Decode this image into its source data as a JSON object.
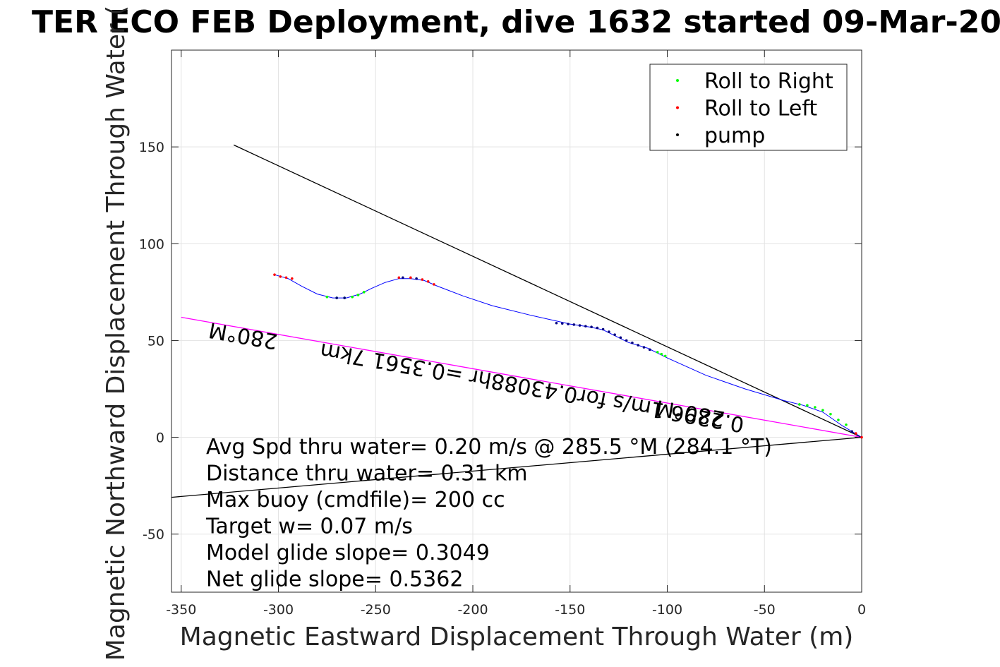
{
  "chart_data": {
    "type": "scatter",
    "title": "TER ECO FEB Deployment, dive 1632 started 09-Mar-20",
    "xlabel": "Magnetic Eastward Displacement Through Water (m)",
    "ylabel": "Magnetic Northward Displacement Through Water (",
    "xlim": [
      -355,
      0
    ],
    "ylim": [
      -80,
      200
    ],
    "xticks": [
      -350,
      -300,
      -250,
      -200,
      -150,
      -100,
      -50,
      0
    ],
    "yticks": [
      -50,
      0,
      50,
      100,
      150
    ],
    "grid": true,
    "legend_position": "top-right",
    "legend": [
      {
        "label": "Roll to Right",
        "color": "#00ff00"
      },
      {
        "label": "Roll to Left",
        "color": "#ff0000"
      },
      {
        "label": "pump",
        "color": "#000000"
      }
    ],
    "track": {
      "color": "#0000ff",
      "points": [
        [
          -302,
          84
        ],
        [
          -295,
          82
        ],
        [
          -288,
          78
        ],
        [
          -280,
          74
        ],
        [
          -272,
          72
        ],
        [
          -265,
          72
        ],
        [
          -258,
          74
        ],
        [
          -252,
          77
        ],
        [
          -245,
          80
        ],
        [
          -238,
          82
        ],
        [
          -232,
          82
        ],
        [
          -225,
          81
        ],
        [
          -218,
          78
        ],
        [
          -205,
          73
        ],
        [
          -190,
          68
        ],
        [
          -170,
          63
        ],
        [
          -150,
          58.5
        ],
        [
          -140,
          57
        ],
        [
          -133,
          55.5
        ],
        [
          -128,
          53
        ],
        [
          -120,
          49
        ],
        [
          -110,
          46
        ],
        [
          -100,
          41
        ],
        [
          -80,
          32
        ],
        [
          -60,
          25
        ],
        [
          -40,
          19
        ],
        [
          -30,
          16.5
        ],
        [
          -20,
          13
        ],
        [
          -10,
          6
        ],
        [
          -5,
          3
        ],
        [
          0,
          0
        ]
      ]
    },
    "roll_right": [
      [
        -275,
        72.5
      ],
      [
        -270,
        72
      ],
      [
        -266,
        72
      ],
      [
        -262,
        72.5
      ],
      [
        -259,
        73.5
      ],
      [
        -256,
        75
      ],
      [
        -105,
        44
      ],
      [
        -103,
        43
      ],
      [
        -101,
        42
      ],
      [
        -32,
        17
      ],
      [
        -28,
        16.5
      ],
      [
        -24,
        15.5
      ],
      [
        -20,
        14
      ],
      [
        -16,
        12
      ],
      [
        -12,
        9
      ],
      [
        -8,
        6.5
      ]
    ],
    "roll_left": [
      [
        -302,
        84
      ],
      [
        -299,
        83
      ],
      [
        -296,
        82.5
      ],
      [
        -293,
        82
      ],
      [
        -226,
        81.5
      ],
      [
        -223,
        80.5
      ],
      [
        -220,
        79
      ],
      [
        -238,
        82.5
      ],
      [
        -232,
        82.5
      ],
      [
        -3,
        2
      ],
      [
        0,
        0
      ]
    ],
    "pump": [
      [
        -157,
        59
      ],
      [
        -154,
        58.8
      ],
      [
        -151,
        58.5
      ],
      [
        -148,
        58.2
      ],
      [
        -145,
        57.8
      ],
      [
        -142,
        57.4
      ],
      [
        -139,
        57
      ],
      [
        -136,
        56.5
      ],
      [
        -133,
        55.8
      ],
      [
        -130,
        54.5
      ],
      [
        -127,
        53
      ],
      [
        -124,
        51.5
      ],
      [
        -121,
        50
      ],
      [
        -118,
        48.8
      ],
      [
        -115,
        47.6
      ],
      [
        -112,
        46.5
      ],
      [
        -109,
        45.3
      ],
      [
        -270,
        72
      ],
      [
        -266,
        72
      ],
      [
        -236,
        82.5
      ],
      [
        -229,
        82
      ],
      [
        -5,
        3
      ]
    ],
    "lines": [
      {
        "name": "heading-line",
        "color": "#ff00ff",
        "points": [
          [
            -350,
            62
          ],
          [
            0,
            0
          ]
        ]
      },
      {
        "name": "reference-line-upper",
        "color": "#000000",
        "points": [
          [
            -323,
            151
          ],
          [
            0,
            0
          ]
        ]
      },
      {
        "name": "reference-line-lower",
        "color": "#000000",
        "points": [
          [
            -355,
            -31
          ],
          [
            0,
            0
          ]
        ]
      }
    ],
    "annotations": [
      {
        "name": "heading-label-left",
        "text": "280°M",
        "x": -300,
        "y": 53,
        "angle": 190
      },
      {
        "name": "heading-label-right",
        "text": "280°M",
        "x": -70,
        "y": 13,
        "angle": 190
      },
      {
        "name": "speed-label",
        "text": "0.2296 1m/s for0.43088hr =0.3561 7km",
        "x": -60,
        "y": 10,
        "angle": 190
      }
    ],
    "stats": [
      "Avg Spd thru water=  0.20 m/s @ 285.5 °M (284.1 °T)",
      "Distance thru water=  0.31 km",
      "Max buoy (cmdfile)= 200 cc",
      "Target w= 0.07 m/s",
      "Model glide slope= 0.3049",
      "Net glide slope= 0.5362"
    ]
  }
}
